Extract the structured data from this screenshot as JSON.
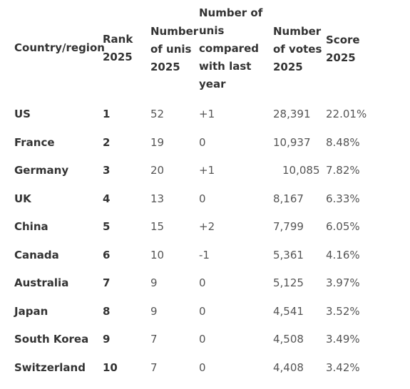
{
  "table": {
    "headers": {
      "country": [
        "Country/region"
      ],
      "rank": [
        "Rank",
        "2025"
      ],
      "number": [
        "Number",
        "of unis",
        "2025"
      ],
      "compare": [
        "Number of",
        "unis",
        "compared",
        "with last",
        "year"
      ],
      "votes": [
        "Number",
        "of votes",
        "2025"
      ],
      "score": [
        "Score",
        "2025"
      ]
    },
    "rows": [
      {
        "country": "US",
        "rank": "1",
        "number": "52",
        "compare": "+1",
        "votes": "28,391",
        "score": "22.01%"
      },
      {
        "country": "France",
        "rank": "2",
        "number": "19",
        "compare": "0",
        "votes": "10,937",
        "score": "8.48%"
      },
      {
        "country": "Germany",
        "rank": "3",
        "number": "20",
        "compare": "+1",
        "votes": "10,085",
        "score": "7.82%"
      },
      {
        "country": "UK",
        "rank": "4",
        "number": "13",
        "compare": "0",
        "votes": "8,167",
        "score": "6.33%"
      },
      {
        "country": "China",
        "rank": "5",
        "number": "15",
        "compare": "+2",
        "votes": "7,799",
        "score": "6.05%"
      },
      {
        "country": "Canada",
        "rank": "6",
        "number": "10",
        "compare": "-1",
        "votes": "5,361",
        "score": "4.16%"
      },
      {
        "country": "Australia",
        "rank": "7",
        "number": "9",
        "compare": "0",
        "votes": "5,125",
        "score": "3.97%"
      },
      {
        "country": "Japan",
        "rank": "8",
        "number": "9",
        "compare": "0",
        "votes": "4,541",
        "score": "3.52%"
      },
      {
        "country": "South Korea",
        "rank": "9",
        "number": "7",
        "compare": "0",
        "votes": "4,508",
        "score": "3.49%"
      },
      {
        "country": "Switzerland",
        "rank": "10",
        "number": "7",
        "compare": "0",
        "votes": "4,408",
        "score": "3.42%"
      }
    ]
  }
}
